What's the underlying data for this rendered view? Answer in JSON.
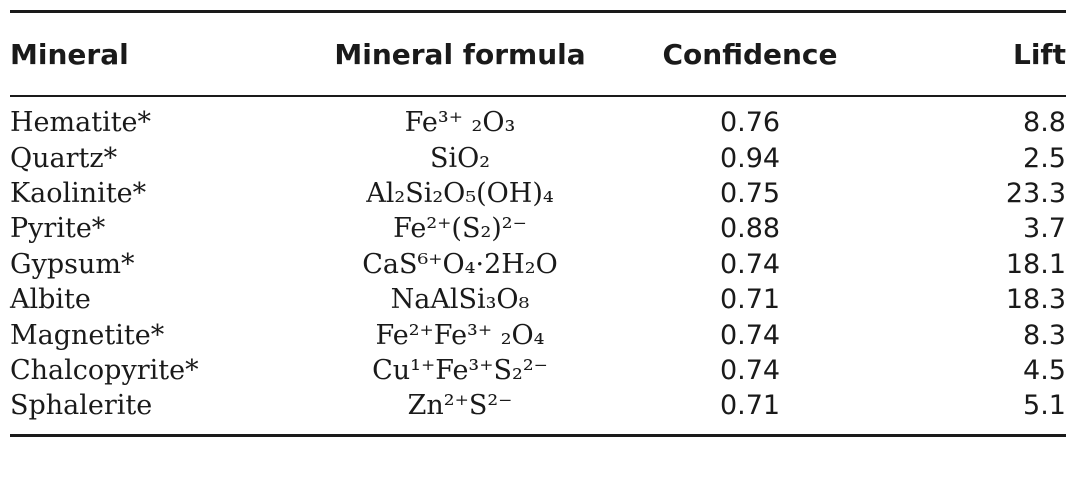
{
  "table": {
    "headers": {
      "mineral": "Mineral",
      "formula": "Mineral formula",
      "confidence": "Confidence",
      "lift": "Lift"
    },
    "rows": [
      {
        "mineral": "Hematite*",
        "formula": "Fe³⁺ ₂O₃",
        "confidence": "0.76",
        "lift": "8.8"
      },
      {
        "mineral": "Quartz*",
        "formula": "SiO₂",
        "confidence": "0.94",
        "lift": "2.5"
      },
      {
        "mineral": "Kaolinite*",
        "formula": "Al₂Si₂O₅(OH)₄",
        "confidence": "0.75",
        "lift": "23.3"
      },
      {
        "mineral": "Pyrite*",
        "formula": "Fe²⁺(S₂)²⁻",
        "confidence": "0.88",
        "lift": "3.7"
      },
      {
        "mineral": "Gypsum*",
        "formula": "CaS⁶⁺O₄·2H₂O",
        "confidence": "0.74",
        "lift": "18.1"
      },
      {
        "mineral": "Albite",
        "formula": "NaAlSi₃O₈",
        "confidence": "0.71",
        "lift": "18.3"
      },
      {
        "mineral": "Magnetite*",
        "formula": "Fe²⁺Fe³⁺ ₂O₄",
        "confidence": "0.74",
        "lift": "8.3"
      },
      {
        "mineral": "Chalcopyrite*",
        "formula": "Cu¹⁺Fe³⁺S₂²⁻",
        "confidence": "0.74",
        "lift": "4.5"
      },
      {
        "mineral": "Sphalerite",
        "formula": "Zn²⁺S²⁻",
        "confidence": "0.71",
        "lift": "5.1"
      }
    ]
  }
}
